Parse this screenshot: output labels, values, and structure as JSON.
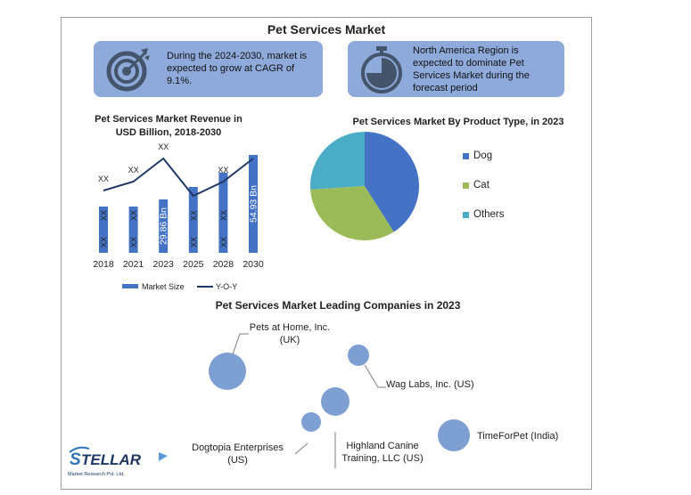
{
  "title": "Pet Services Market",
  "info_boxes": [
    {
      "icon": "target-icon",
      "text": "During the 2024-2030, market is expected to grow at CAGR of 9.1%."
    },
    {
      "icon": "stopwatch-icon",
      "text": "North America Region is expected to dominate Pet Services Market during the forecast period"
    }
  ],
  "colors": {
    "box": "#8eaadb",
    "bar": "#4472c4",
    "dog": "#4472c4",
    "cat": "#9bbb59",
    "others": "#4bacc6",
    "bubble": "#7d9fd2",
    "line": "#1f3864"
  },
  "chart_data": [
    {
      "type": "bar",
      "title": "Pet Services Market Revenue in USD Billion, 2018-2030",
      "categories": [
        "2018",
        "2021",
        "2023",
        "2025",
        "2028",
        "2030"
      ],
      "series": [
        {
          "name": "Market Size",
          "values": [
            26,
            26,
            30,
            37,
            45,
            55
          ]
        },
        {
          "name": "Y-O-Y",
          "values": [
            35,
            40,
            53,
            32,
            40,
            53
          ]
        }
      ],
      "bar_labels": [
        "XX",
        "XX",
        "29.86 Bn",
        "XX",
        "XX",
        "54.93 Bn"
      ],
      "line_labels": [
        "XX",
        "XX",
        "XX",
        "",
        "XX",
        ""
      ],
      "xlabel": "",
      "ylabel": ""
    },
    {
      "type": "pie",
      "title": "Pet Services Market By Product Type, in 2023",
      "labels": [
        "Dog",
        "Cat",
        "Others"
      ],
      "values": [
        41,
        33,
        26
      ],
      "legend": "right"
    }
  ],
  "companies_title": "Pet Services Market Leading Companies in 2023",
  "companies": [
    {
      "name": "Pets at Home, Inc.",
      "region": "(UK)"
    },
    {
      "name": "Wag Labs, Inc. (US)",
      "region": ""
    },
    {
      "name": "Highland Canine",
      "region": "Training, LLC (US)"
    },
    {
      "name": "Dogtopia Enterprises",
      "region": "(US)"
    },
    {
      "name": "TimeForPet (India)",
      "region": ""
    }
  ],
  "logo": {
    "name": "STELLAR",
    "tagline": "Market Research Pvt. Ltd."
  }
}
